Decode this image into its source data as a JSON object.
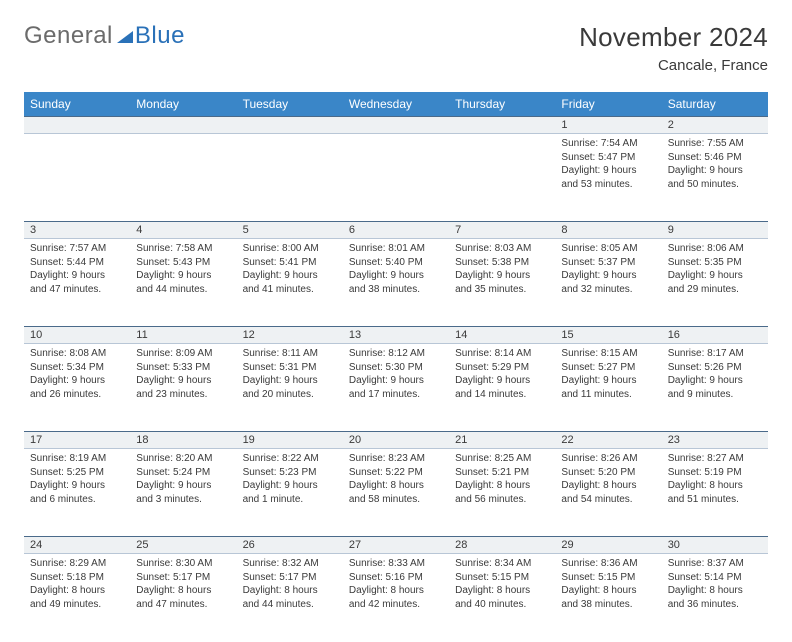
{
  "logo": {
    "part1": "General",
    "part2": "Blue"
  },
  "title": "November 2024",
  "location": "Cancale, France",
  "columns": [
    "Sunday",
    "Monday",
    "Tuesday",
    "Wednesday",
    "Thursday",
    "Friday",
    "Saturday"
  ],
  "colors": {
    "header_bg": "#3a86c8",
    "header_text": "#ffffff",
    "daynum_bg": "#eef1f3",
    "border": "#4a6a8a",
    "text": "#3a3a3a",
    "logo_gray": "#6b6b6b",
    "logo_blue": "#2a71b8"
  },
  "weeks": [
    [
      null,
      null,
      null,
      null,
      null,
      {
        "d": "1",
        "sr": "Sunrise: 7:54 AM",
        "ss": "Sunset: 5:47 PM",
        "dl": "Daylight: 9 hours and 53 minutes."
      },
      {
        "d": "2",
        "sr": "Sunrise: 7:55 AM",
        "ss": "Sunset: 5:46 PM",
        "dl": "Daylight: 9 hours and 50 minutes."
      }
    ],
    [
      {
        "d": "3",
        "sr": "Sunrise: 7:57 AM",
        "ss": "Sunset: 5:44 PM",
        "dl": "Daylight: 9 hours and 47 minutes."
      },
      {
        "d": "4",
        "sr": "Sunrise: 7:58 AM",
        "ss": "Sunset: 5:43 PM",
        "dl": "Daylight: 9 hours and 44 minutes."
      },
      {
        "d": "5",
        "sr": "Sunrise: 8:00 AM",
        "ss": "Sunset: 5:41 PM",
        "dl": "Daylight: 9 hours and 41 minutes."
      },
      {
        "d": "6",
        "sr": "Sunrise: 8:01 AM",
        "ss": "Sunset: 5:40 PM",
        "dl": "Daylight: 9 hours and 38 minutes."
      },
      {
        "d": "7",
        "sr": "Sunrise: 8:03 AM",
        "ss": "Sunset: 5:38 PM",
        "dl": "Daylight: 9 hours and 35 minutes."
      },
      {
        "d": "8",
        "sr": "Sunrise: 8:05 AM",
        "ss": "Sunset: 5:37 PM",
        "dl": "Daylight: 9 hours and 32 minutes."
      },
      {
        "d": "9",
        "sr": "Sunrise: 8:06 AM",
        "ss": "Sunset: 5:35 PM",
        "dl": "Daylight: 9 hours and 29 minutes."
      }
    ],
    [
      {
        "d": "10",
        "sr": "Sunrise: 8:08 AM",
        "ss": "Sunset: 5:34 PM",
        "dl": "Daylight: 9 hours and 26 minutes."
      },
      {
        "d": "11",
        "sr": "Sunrise: 8:09 AM",
        "ss": "Sunset: 5:33 PM",
        "dl": "Daylight: 9 hours and 23 minutes."
      },
      {
        "d": "12",
        "sr": "Sunrise: 8:11 AM",
        "ss": "Sunset: 5:31 PM",
        "dl": "Daylight: 9 hours and 20 minutes."
      },
      {
        "d": "13",
        "sr": "Sunrise: 8:12 AM",
        "ss": "Sunset: 5:30 PM",
        "dl": "Daylight: 9 hours and 17 minutes."
      },
      {
        "d": "14",
        "sr": "Sunrise: 8:14 AM",
        "ss": "Sunset: 5:29 PM",
        "dl": "Daylight: 9 hours and 14 minutes."
      },
      {
        "d": "15",
        "sr": "Sunrise: 8:15 AM",
        "ss": "Sunset: 5:27 PM",
        "dl": "Daylight: 9 hours and 11 minutes."
      },
      {
        "d": "16",
        "sr": "Sunrise: 8:17 AM",
        "ss": "Sunset: 5:26 PM",
        "dl": "Daylight: 9 hours and 9 minutes."
      }
    ],
    [
      {
        "d": "17",
        "sr": "Sunrise: 8:19 AM",
        "ss": "Sunset: 5:25 PM",
        "dl": "Daylight: 9 hours and 6 minutes."
      },
      {
        "d": "18",
        "sr": "Sunrise: 8:20 AM",
        "ss": "Sunset: 5:24 PM",
        "dl": "Daylight: 9 hours and 3 minutes."
      },
      {
        "d": "19",
        "sr": "Sunrise: 8:22 AM",
        "ss": "Sunset: 5:23 PM",
        "dl": "Daylight: 9 hours and 1 minute."
      },
      {
        "d": "20",
        "sr": "Sunrise: 8:23 AM",
        "ss": "Sunset: 5:22 PM",
        "dl": "Daylight: 8 hours and 58 minutes."
      },
      {
        "d": "21",
        "sr": "Sunrise: 8:25 AM",
        "ss": "Sunset: 5:21 PM",
        "dl": "Daylight: 8 hours and 56 minutes."
      },
      {
        "d": "22",
        "sr": "Sunrise: 8:26 AM",
        "ss": "Sunset: 5:20 PM",
        "dl": "Daylight: 8 hours and 54 minutes."
      },
      {
        "d": "23",
        "sr": "Sunrise: 8:27 AM",
        "ss": "Sunset: 5:19 PM",
        "dl": "Daylight: 8 hours and 51 minutes."
      }
    ],
    [
      {
        "d": "24",
        "sr": "Sunrise: 8:29 AM",
        "ss": "Sunset: 5:18 PM",
        "dl": "Daylight: 8 hours and 49 minutes."
      },
      {
        "d": "25",
        "sr": "Sunrise: 8:30 AM",
        "ss": "Sunset: 5:17 PM",
        "dl": "Daylight: 8 hours and 47 minutes."
      },
      {
        "d": "26",
        "sr": "Sunrise: 8:32 AM",
        "ss": "Sunset: 5:17 PM",
        "dl": "Daylight: 8 hours and 44 minutes."
      },
      {
        "d": "27",
        "sr": "Sunrise: 8:33 AM",
        "ss": "Sunset: 5:16 PM",
        "dl": "Daylight: 8 hours and 42 minutes."
      },
      {
        "d": "28",
        "sr": "Sunrise: 8:34 AM",
        "ss": "Sunset: 5:15 PM",
        "dl": "Daylight: 8 hours and 40 minutes."
      },
      {
        "d": "29",
        "sr": "Sunrise: 8:36 AM",
        "ss": "Sunset: 5:15 PM",
        "dl": "Daylight: 8 hours and 38 minutes."
      },
      {
        "d": "30",
        "sr": "Sunrise: 8:37 AM",
        "ss": "Sunset: 5:14 PM",
        "dl": "Daylight: 8 hours and 36 minutes."
      }
    ]
  ]
}
